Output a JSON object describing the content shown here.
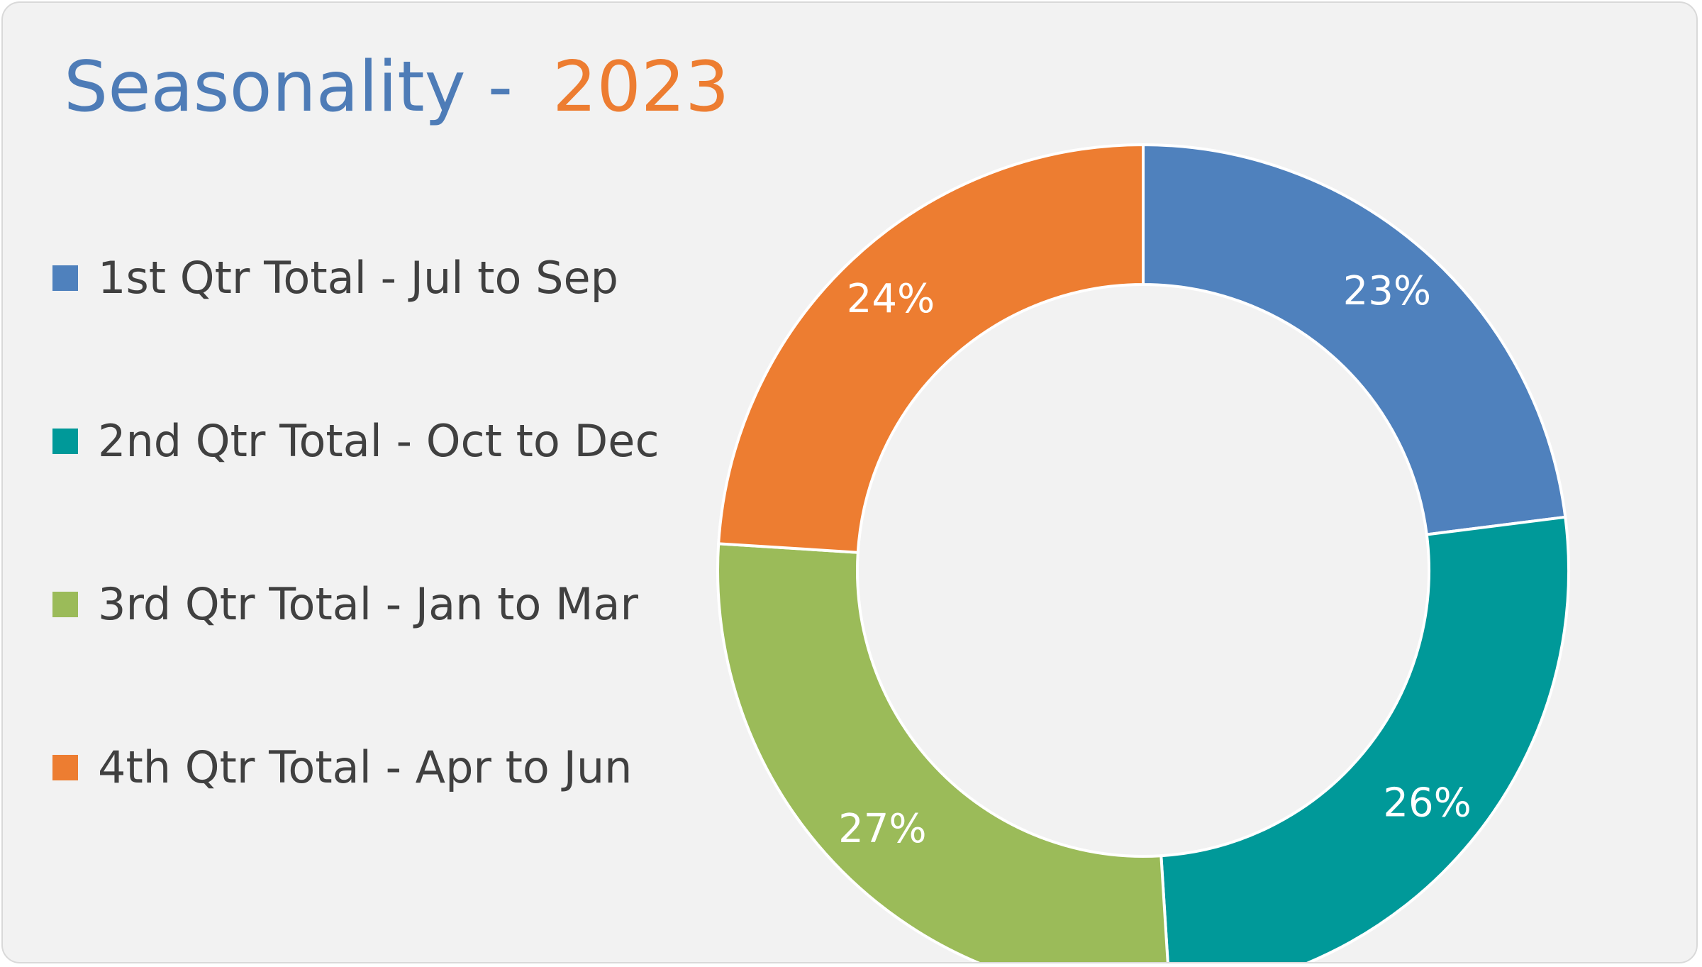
{
  "chart_data": {
    "type": "pie",
    "variant": "donut",
    "title": "Seasonality -",
    "title_highlight": "2023",
    "categories": [
      "1st Qtr Total - Jul to Sep",
      "2nd Qtr Total - Oct to Dec",
      "3rd Qtr Total - Jan to Mar",
      "4th Qtr Total - Apr to Jun"
    ],
    "values": [
      23,
      26,
      27,
      24
    ],
    "data_labels": [
      "23%",
      "26%",
      "27%",
      "24%"
    ],
    "colors": [
      "#4f81bd",
      "#009999",
      "#9bbb59",
      "#ed7d31"
    ],
    "title_colors": {
      "main": "#4e7cb7",
      "highlight": "#ed7d31"
    },
    "legend_position": "left",
    "start_angle": "12 o'clock",
    "direction": "clockwise"
  }
}
